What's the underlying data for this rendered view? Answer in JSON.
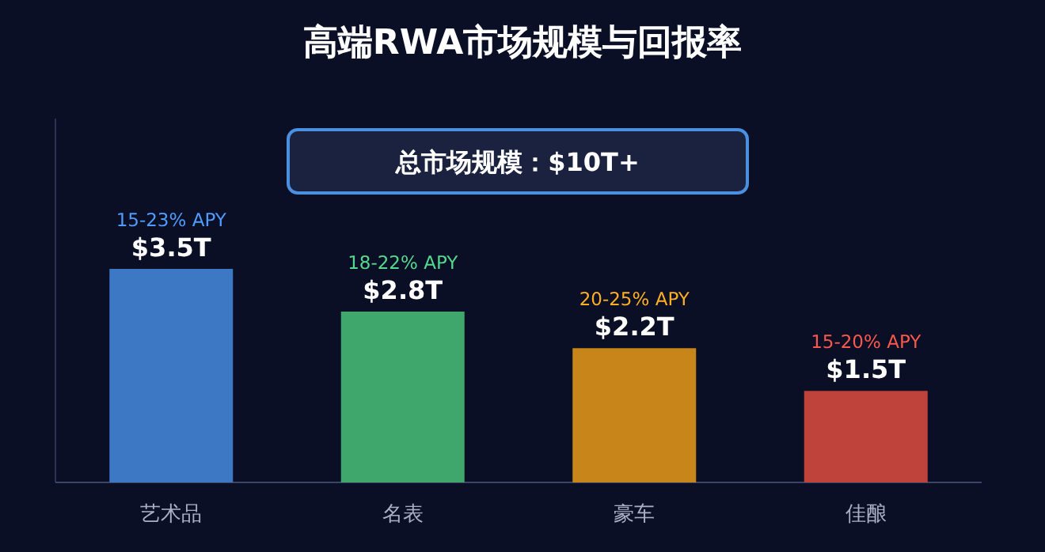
{
  "chart_data": {
    "type": "bar",
    "title": "高端RWA市场规模与回报率",
    "categories": [
      "艺术品",
      "名表",
      "豪车",
      "佳酿"
    ],
    "values": [
      3.5,
      2.8,
      2.2,
      1.5
    ],
    "colors": [
      "#3c78c4",
      "#3fa76b",
      "#c8861a",
      "#c0433b"
    ],
    "value_labels": [
      "$3.5T",
      "$2.8T",
      "$2.2T",
      "$1.5T"
    ],
    "annotations": [
      "总市场规模：$10T+",
      {
        "text": "15-23% APY",
        "x": "艺术品",
        "y": 3.5
      },
      {
        "text": "18-22% APY",
        "x": "名表",
        "y": 2.8
      },
      {
        "text": "20-25% APY",
        "x": "豪车",
        "y": 2.2
      },
      {
        "text": "15-20% APY",
        "x": "佳酿",
        "y": 1.5
      }
    ]
  }
}
